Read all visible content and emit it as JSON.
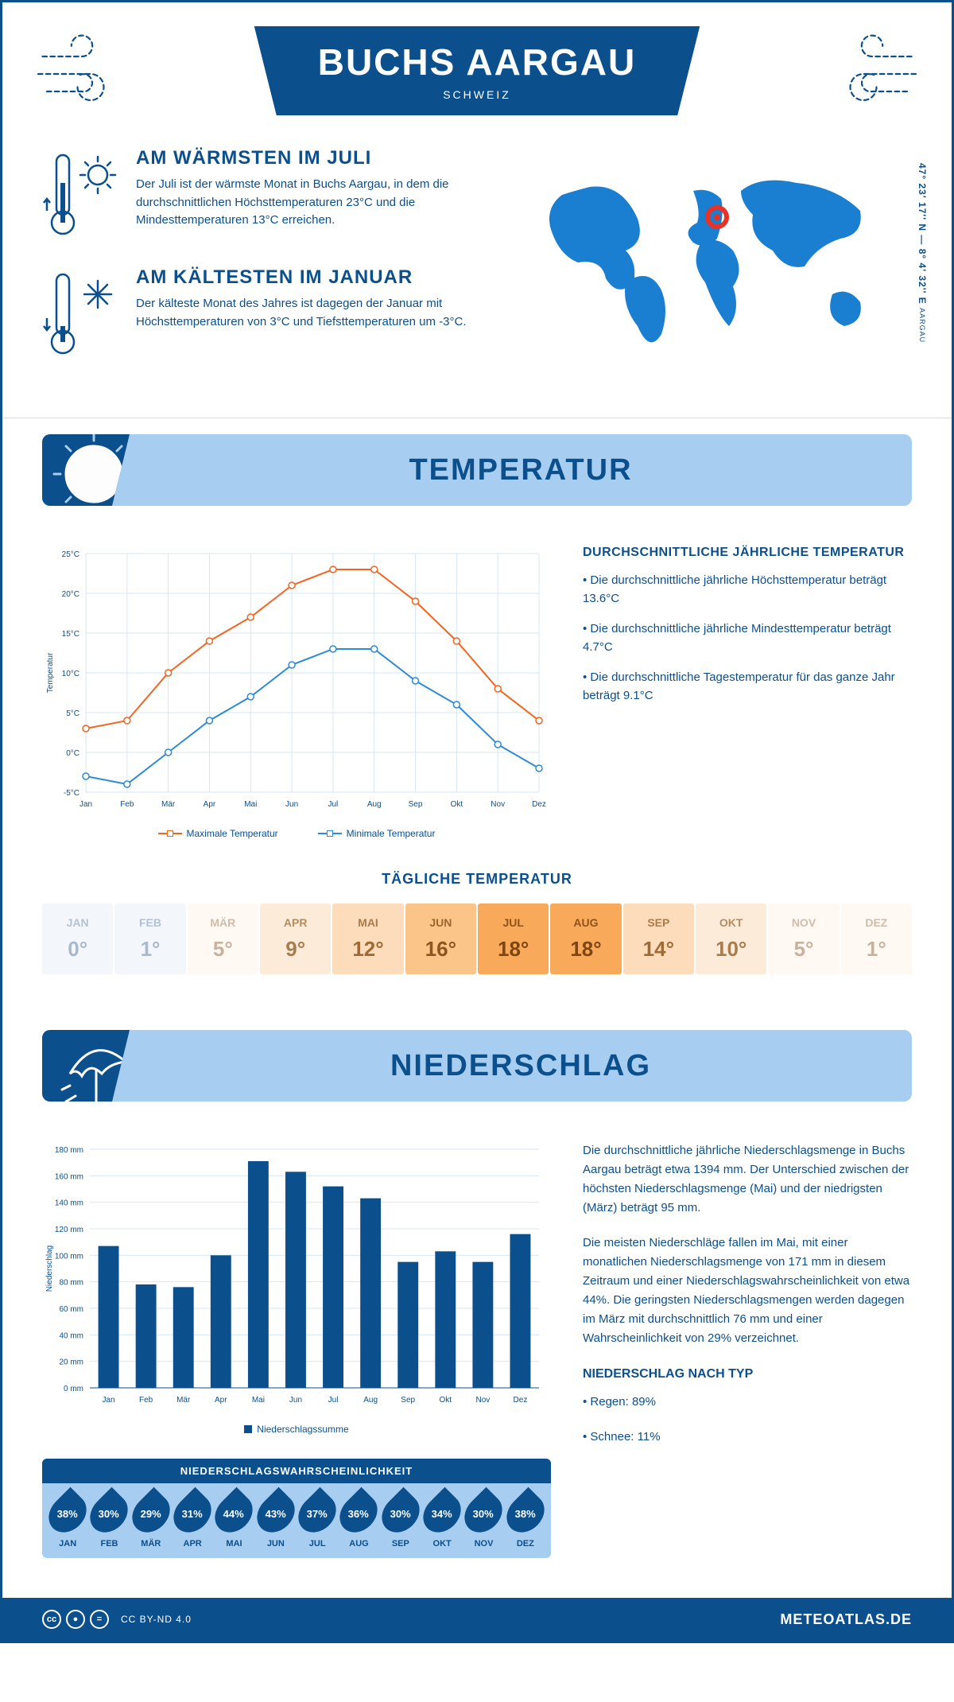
{
  "header": {
    "title": "BUCHS AARGAU",
    "subtitle": "SCHWEIZ",
    "coords": "47° 23' 17'' N — 8° 4' 32'' E",
    "coords_place": "AARGAU"
  },
  "overview": {
    "warmest": {
      "title": "AM WÄRMSTEN IM JULI",
      "text": "Der Juli ist der wärmste Monat in Buchs Aargau, in dem die durchschnittlichen Höchsttemperaturen 23°C und die Mindesttemperaturen 13°C erreichen."
    },
    "coldest": {
      "title": "AM KÄLTESTEN IM JANUAR",
      "text": "Der kälteste Monat des Jahres ist dagegen der Januar mit Höchsttemperaturen von 3°C und Tiefsttemperaturen um -3°C."
    }
  },
  "temperature": {
    "section_title": "TEMPERATUR",
    "chart": {
      "type": "line",
      "months": [
        "Jan",
        "Feb",
        "Mär",
        "Apr",
        "Mai",
        "Jun",
        "Jul",
        "Aug",
        "Sep",
        "Okt",
        "Nov",
        "Dez"
      ],
      "series": [
        {
          "label": "Maximale Temperatur",
          "color": "#f26522",
          "values": [
            3,
            4,
            10,
            14,
            17,
            21,
            23,
            23,
            19,
            14,
            8,
            4
          ]
        },
        {
          "label": "Minimale Temperatur",
          "color": "#2d8ad6",
          "values": [
            -3,
            -4,
            0,
            4,
            7,
            11,
            13,
            13,
            9,
            6,
            1,
            -2
          ]
        }
      ],
      "y_axis": {
        "min": -5,
        "max": 25,
        "step": 5,
        "unit": "°C",
        "label": "Temperatur"
      },
      "grid_color": "#d7e7f5",
      "background": "#ffffff",
      "marker_size": 4,
      "line_width": 2
    },
    "info": {
      "title": "DURCHSCHNITTLICHE JÄHRLICHE TEMPERATUR",
      "bullets": [
        "• Die durchschnittliche jährliche Höchsttemperatur beträgt 13.6°C",
        "• Die durchschnittliche jährliche Mindesttemperatur beträgt 4.7°C",
        "• Die durchschnittliche Tagestemperatur für das ganze Jahr beträgt 9.1°C"
      ]
    },
    "daily": {
      "title": "TÄGLICHE TEMPERATUR",
      "months": [
        "JAN",
        "FEB",
        "MÄR",
        "APR",
        "MAI",
        "JUN",
        "JUL",
        "AUG",
        "SEP",
        "OKT",
        "NOV",
        "DEZ"
      ],
      "values": [
        "0°",
        "1°",
        "5°",
        "9°",
        "12°",
        "16°",
        "18°",
        "18°",
        "14°",
        "10°",
        "5°",
        "1°"
      ],
      "colors": [
        "#f3f6fa",
        "#f3f6fa",
        "#fff8f3",
        "#fdebda",
        "#fcdcba",
        "#fbc589",
        "#f8a959",
        "#f8a959",
        "#fcdcba",
        "#fdebda",
        "#fff8f3",
        "#fff8f3"
      ],
      "text_colors": [
        "#a9b9cc",
        "#a9b9cc",
        "#c9b29d",
        "#a87c4d",
        "#9e6b36",
        "#8d5520",
        "#7d4612",
        "#7d4612",
        "#9e6b36",
        "#a87c4d",
        "#c9b29d",
        "#c9b29d"
      ]
    }
  },
  "precipitation": {
    "section_title": "NIEDERSCHLAG",
    "chart": {
      "type": "bar",
      "months": [
        "Jan",
        "Feb",
        "Mär",
        "Apr",
        "Mai",
        "Jun",
        "Jul",
        "Aug",
        "Sep",
        "Okt",
        "Nov",
        "Dez"
      ],
      "values": [
        107,
        78,
        76,
        100,
        171,
        163,
        152,
        143,
        95,
        103,
        95,
        116
      ],
      "bar_color": "#0b4f8c",
      "y_axis": {
        "min": 0,
        "max": 180,
        "step": 20,
        "unit": " mm",
        "label": "Niederschlag"
      },
      "grid_color": "#d7e7f5",
      "legend_label": "Niederschlagssumme",
      "bar_width_ratio": 0.55
    },
    "info": {
      "para1": "Die durchschnittliche jährliche Niederschlagsmenge in Buchs Aargau beträgt etwa 1394 mm. Der Unterschied zwischen der höchsten Niederschlagsmenge (Mai) und der niedrigsten (März) beträgt 95 mm.",
      "para2": "Die meisten Niederschläge fallen im Mai, mit einer monatlichen Niederschlagsmenge von 171 mm in diesem Zeitraum und einer Niederschlagswahrscheinlichkeit von etwa 44%. Die geringsten Niederschlagsmengen werden dagegen im März mit durchschnittlich 76 mm und einer Wahrscheinlichkeit von 29% verzeichnet.",
      "type_title": "NIEDERSCHLAG NACH TYP",
      "types": [
        "• Regen: 89%",
        "• Schnee: 11%"
      ]
    },
    "probability": {
      "title": "NIEDERSCHLAGSWAHRSCHEINLICHKEIT",
      "months": [
        "JAN",
        "FEB",
        "MÄR",
        "APR",
        "MAI",
        "JUN",
        "JUL",
        "AUG",
        "SEP",
        "OKT",
        "NOV",
        "DEZ"
      ],
      "values": [
        "38%",
        "30%",
        "29%",
        "31%",
        "44%",
        "43%",
        "37%",
        "36%",
        "30%",
        "34%",
        "30%",
        "38%"
      ]
    }
  },
  "footer": {
    "license": "CC BY-ND 4.0",
    "brand": "METEOATLAS.DE"
  },
  "colors": {
    "primary": "#0b4f8c",
    "light_blue": "#a7cef1",
    "map_blue": "#1a7ed1",
    "marker_red": "#e63227"
  }
}
